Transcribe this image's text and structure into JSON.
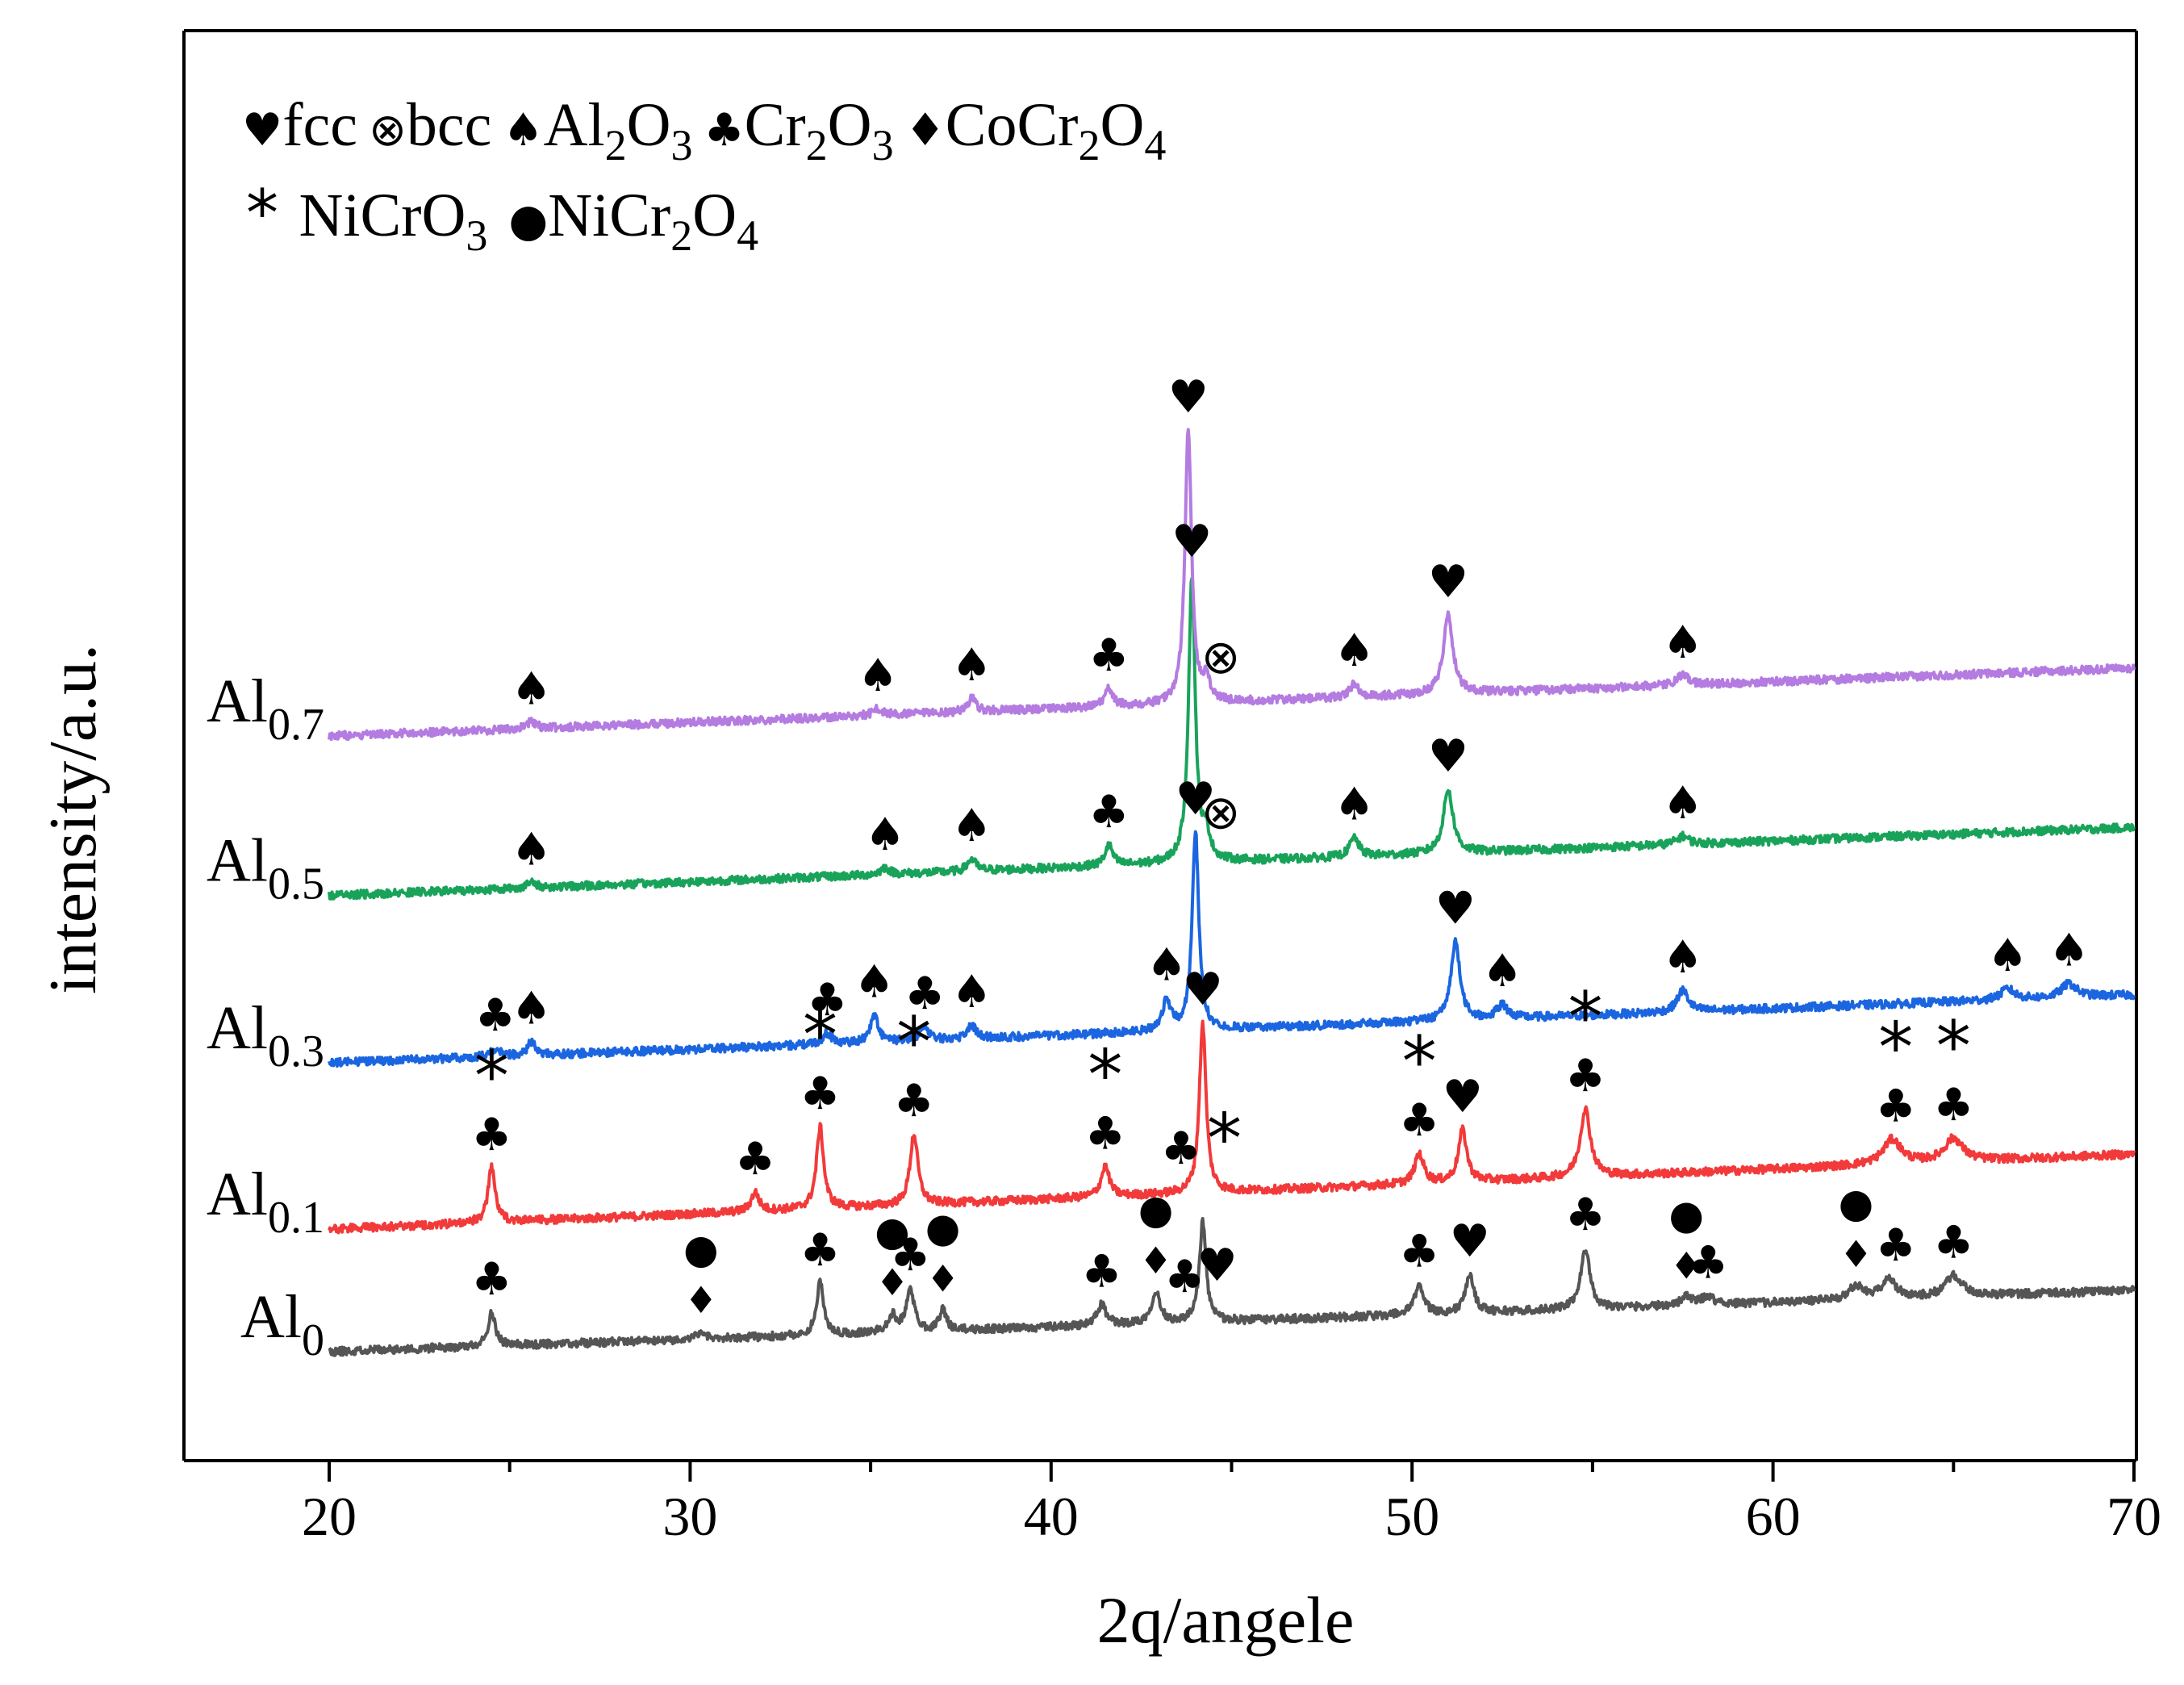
{
  "chart_data": {
    "type": "line",
    "title": "",
    "xlabel": "2q/angele",
    "ylabel": "intensity/a.u.",
    "xlim": [
      16,
      70
    ],
    "ylim": [
      0,
      1050
    ],
    "xticks": [
      20,
      30,
      40,
      50,
      60,
      70
    ],
    "yticks_shown": false,
    "grid": false,
    "legend_position": "top-left",
    "legend": [
      {
        "symbol": "heart",
        "glyph": "♥",
        "text": "fcc"
      },
      {
        "symbol": "otimes",
        "glyph": "⊗",
        "text": "bcc"
      },
      {
        "symbol": "spade",
        "glyph": "♠",
        "text": "Al",
        "sub1": "2",
        "text2": "O",
        "sub2": "3"
      },
      {
        "symbol": "club",
        "glyph": "♣",
        "text": "Cr",
        "sub1": "2",
        "text2": "O",
        "sub2": "3"
      },
      {
        "symbol": "diamond",
        "glyph": "♦",
        "text": "CoCr",
        "sub1": "2",
        "text2": "O",
        "sub2": "4"
      },
      {
        "symbol": "asterisk",
        "glyph": "*",
        "text": "NiCrO",
        "sub1": "3",
        "text2": "",
        "sub2": ""
      },
      {
        "symbol": "dot",
        "glyph": "●",
        "text": "NiCr",
        "sub1": "2",
        "text2": "O",
        "sub2": "4"
      }
    ],
    "series": [
      {
        "name": "Al0",
        "label_main": "Al",
        "label_sub": "0",
        "color": "#555555",
        "baseline": [
          80,
          125
        ],
        "noise": 3,
        "seed": 11,
        "peaks": [
          [
            24.5,
            25,
            0.12
          ],
          [
            30.3,
            6,
            0.12
          ],
          [
            33.6,
            38,
            0.12
          ],
          [
            35.6,
            12,
            0.15
          ],
          [
            36.1,
            31,
            0.13
          ],
          [
            37.0,
            15,
            0.12
          ],
          [
            41.4,
            15,
            0.15
          ],
          [
            42.9,
            23,
            0.15
          ],
          [
            44.2,
            73,
            0.11
          ],
          [
            50.2,
            22,
            0.15
          ],
          [
            51.6,
            28,
            0.14
          ],
          [
            54.8,
            45,
            0.15
          ],
          [
            57.6,
            6,
            0.2
          ],
          [
            58.2,
            6,
            0.2
          ],
          [
            62.3,
            10,
            0.22
          ],
          [
            63.2,
            14,
            0.25
          ],
          [
            65.0,
            15,
            0.28
          ]
        ],
        "markers": [
          [
            "club",
            24.5
          ],
          [
            "dot",
            30.3
          ],
          [
            "diamond",
            30.3
          ],
          [
            "club",
            33.6
          ],
          [
            "dot",
            35.6
          ],
          [
            "club",
            36.1
          ],
          [
            "dot",
            37.0
          ],
          [
            "diamond",
            35.6
          ],
          [
            "diamond",
            37.0
          ],
          [
            "club",
            41.4
          ],
          [
            "dot",
            42.9
          ],
          [
            "diamond",
            42.9
          ],
          [
            "club",
            43.7
          ],
          [
            "heart",
            44.6
          ],
          [
            "club",
            50.2
          ],
          [
            "heart",
            51.6
          ],
          [
            "club",
            54.8
          ],
          [
            "dot",
            57.6
          ],
          [
            "diamond",
            57.6
          ],
          [
            "club",
            58.2
          ],
          [
            "dot",
            62.3
          ],
          [
            "diamond",
            62.3
          ],
          [
            "club",
            63.4
          ],
          [
            "club",
            65.0
          ]
        ]
      },
      {
        "name": "Al0.1",
        "label_main": "Al",
        "label_sub": "0.1",
        "color": "#f23a3a",
        "baseline": [
          170,
          225
        ],
        "noise": 3,
        "seed": 23,
        "peaks": [
          [
            24.5,
            40,
            0.12
          ],
          [
            31.8,
            14,
            0.13
          ],
          [
            33.6,
            60,
            0.12
          ],
          [
            36.2,
            52,
            0.13
          ],
          [
            41.5,
            22,
            0.14
          ],
          [
            44.2,
            125,
            0.11
          ],
          [
            50.2,
            22,
            0.15
          ],
          [
            51.4,
            38,
            0.14
          ],
          [
            54.8,
            50,
            0.17
          ],
          [
            63.3,
            18,
            0.3
          ],
          [
            65.0,
            17,
            0.3
          ]
        ],
        "markers": [
          [
            "asterisk",
            24.5
          ],
          [
            "club",
            24.5
          ],
          [
            "club",
            31.8
          ],
          [
            "asterisk",
            33.6
          ],
          [
            "club",
            33.6
          ],
          [
            "asterisk",
            36.2
          ],
          [
            "club",
            36.2
          ],
          [
            "asterisk",
            41.5
          ],
          [
            "club",
            41.5
          ],
          [
            "club",
            43.6
          ],
          [
            "heart",
            44.2
          ],
          [
            "asterisk",
            44.8
          ],
          [
            "asterisk",
            50.2
          ],
          [
            "club",
            50.2
          ],
          [
            "heart",
            51.4
          ],
          [
            "asterisk",
            54.8
          ],
          [
            "club",
            54.8
          ],
          [
            "asterisk",
            63.4
          ],
          [
            "club",
            63.4
          ],
          [
            "asterisk",
            65.0
          ],
          [
            "club",
            65.0
          ]
        ]
      },
      {
        "name": "Al0.3",
        "label_main": "Al",
        "label_sub": "0.3",
        "color": "#1b66e0",
        "baseline": [
          292,
          342
        ],
        "noise": 3,
        "seed": 37,
        "peaks": [
          [
            24.6,
            6,
            0.15
          ],
          [
            25.6,
            10,
            0.13
          ],
          [
            33.8,
            8,
            0.15
          ],
          [
            35.1,
            20,
            0.13
          ],
          [
            36.5,
            10,
            0.15
          ],
          [
            37.8,
            10,
            0.14
          ],
          [
            43.2,
            22,
            0.14
          ],
          [
            44.0,
            145,
            0.11
          ],
          [
            51.2,
            58,
            0.15
          ],
          [
            52.5,
            10,
            0.18
          ],
          [
            57.5,
            16,
            0.18
          ],
          [
            66.5,
            8,
            0.22
          ],
          [
            68.2,
            10,
            0.25
          ]
        ],
        "markers": [
          [
            "club",
            24.6
          ],
          [
            "spade",
            25.6
          ],
          [
            "club",
            33.8
          ],
          [
            "spade",
            35.1
          ],
          [
            "club",
            36.5
          ],
          [
            "spade",
            37.8
          ],
          [
            "spade",
            43.2
          ],
          [
            "heart",
            44.0
          ],
          [
            "heart",
            51.2
          ],
          [
            "spade",
            52.5
          ],
          [
            "spade",
            57.5
          ],
          [
            "spade",
            66.5
          ],
          [
            "spade",
            68.2
          ]
        ]
      },
      {
        "name": "Al0.5",
        "label_main": "Al",
        "label_sub": "0.5",
        "color": "#19a35a",
        "baseline": [
          415,
          465
        ],
        "noise": 3,
        "seed": 53,
        "peaks": [
          [
            25.6,
            4,
            0.15
          ],
          [
            35.4,
            5,
            0.15
          ],
          [
            37.8,
            9,
            0.14
          ],
          [
            41.6,
            15,
            0.13
          ],
          [
            43.9,
            210,
            0.11
          ],
          [
            44.3,
            18,
            0.12
          ],
          [
            48.4,
            14,
            0.15
          ],
          [
            51.0,
            47,
            0.16
          ],
          [
            57.5,
            6,
            0.2
          ]
        ],
        "markers": [
          [
            "spade",
            25.6
          ],
          [
            "spade",
            35.4
          ],
          [
            "spade",
            37.8
          ],
          [
            "club",
            41.6
          ],
          [
            "heart",
            43.9
          ],
          [
            "otimes",
            44.7
          ],
          [
            "spade",
            48.4
          ],
          [
            "heart",
            51.0
          ],
          [
            "spade",
            57.5
          ]
        ]
      },
      {
        "name": "Al0.7",
        "label_main": "Al",
        "label_sub": "0.7",
        "color": "#b47be0",
        "baseline": [
          532,
          582
        ],
        "noise": 3,
        "seed": 71,
        "peaks": [
          [
            25.6,
            5,
            0.15
          ],
          [
            35.2,
            5,
            0.15
          ],
          [
            37.8,
            10,
            0.14
          ],
          [
            41.6,
            13,
            0.13
          ],
          [
            43.8,
            200,
            0.11
          ],
          [
            44.3,
            15,
            0.12
          ],
          [
            48.4,
            10,
            0.15
          ],
          [
            51.0,
            58,
            0.16
          ],
          [
            57.5,
            7,
            0.2
          ]
        ],
        "markers": [
          [
            "spade",
            25.6
          ],
          [
            "spade",
            35.2
          ],
          [
            "spade",
            37.8
          ],
          [
            "club",
            41.6
          ],
          [
            "heart",
            43.8
          ],
          [
            "otimes",
            44.7
          ],
          [
            "spade",
            48.4
          ],
          [
            "heart",
            51.0
          ],
          [
            "spade",
            57.5
          ]
        ]
      }
    ]
  }
}
